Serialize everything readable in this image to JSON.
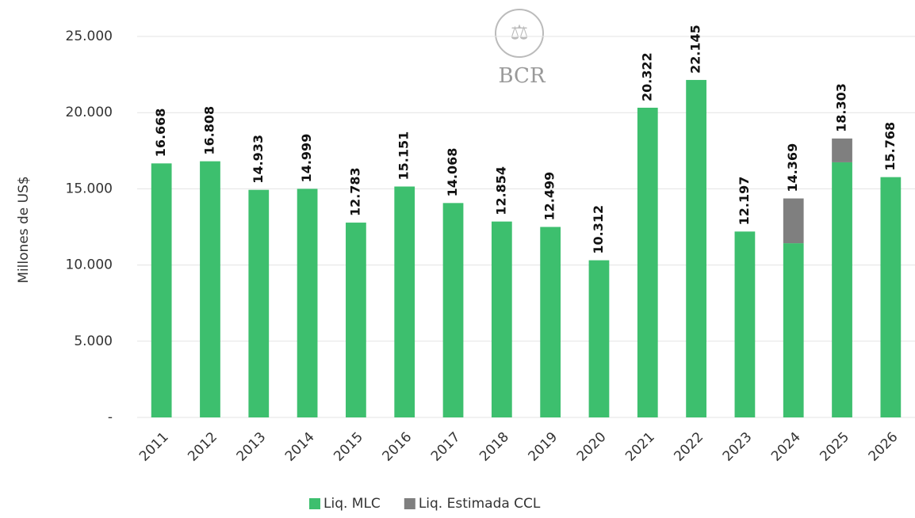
{
  "chart_data": {
    "type": "stacked_bar",
    "watermark": "BCR",
    "y_label": "Millones de US$",
    "categories": [
      "2011",
      "2012",
      "2013",
      "2014",
      "2015",
      "2016",
      "2017",
      "2018",
      "2019",
      "2020",
      "2021",
      "2022",
      "2023",
      "2024",
      "2025",
      "2026"
    ],
    "series": [
      {
        "name": "Liq. MLC",
        "color": "#3dbf6e",
        "values": [
          16668,
          16808,
          14933,
          14999,
          12783,
          15151,
          14068,
          12854,
          12499,
          10312,
          20322,
          22145,
          12197,
          11430,
          16740,
          15768
        ]
      },
      {
        "name": "Liq. Estimada CCL",
        "color": "#7f7f7f",
        "values": [
          null,
          null,
          null,
          null,
          null,
          null,
          null,
          null,
          null,
          null,
          null,
          null,
          null,
          2939,
          1563,
          null
        ]
      }
    ],
    "totals": [
      16668,
      16808,
      14933,
      14999,
      12783,
      15151,
      14068,
      12854,
      12499,
      10312,
      20322,
      22145,
      12197,
      14369,
      18303,
      15768
    ],
    "value_labels": [
      "16.668",
      "16.808",
      "14.933",
      "14.999",
      "12.783",
      "15.151",
      "14.068",
      "12.854",
      "12.499",
      "10.312",
      "20.322",
      "22.145",
      "12.197",
      "14.369",
      "18.303",
      "15.768"
    ],
    "ylim": [
      0,
      25000
    ],
    "yticks": [
      {
        "value": 0,
        "label": "-"
      },
      {
        "value": 5000,
        "label": "5.000"
      },
      {
        "value": 10000,
        "label": "10.000"
      },
      {
        "value": 15000,
        "label": "15.000"
      },
      {
        "value": 20000,
        "label": "20.000"
      },
      {
        "value": 25000,
        "label": "25.000"
      }
    ],
    "grid": true,
    "legend": "bottom"
  }
}
